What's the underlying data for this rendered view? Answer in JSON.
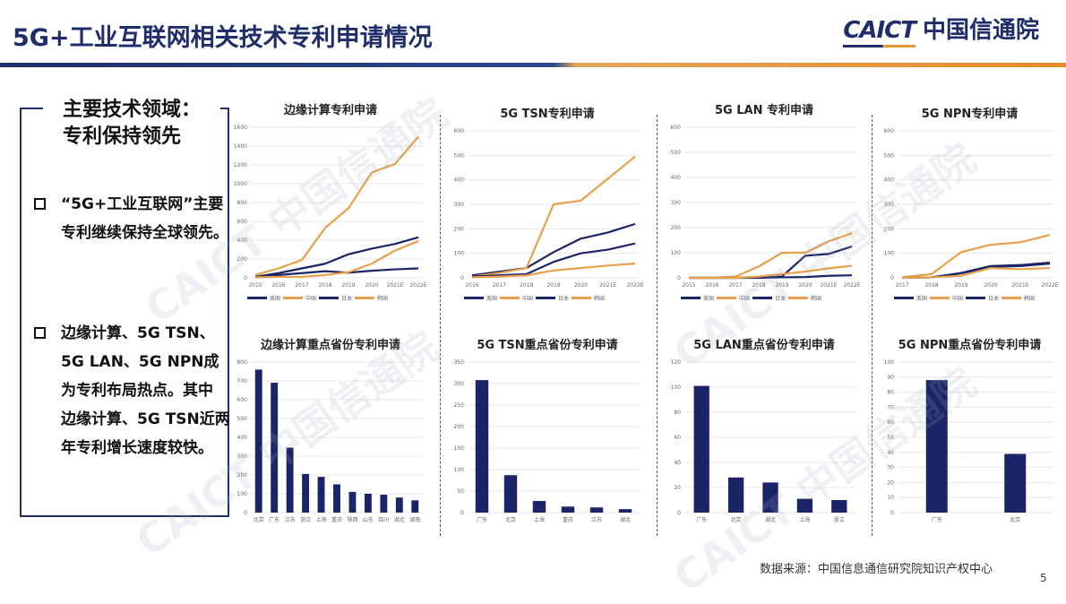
{
  "header": {
    "title": "5G+工业互联网相关技术专利申请情况",
    "logo_en": "CAICT",
    "logo_cn": "中国信通院"
  },
  "panel": {
    "title_line1": "主要技术领域：",
    "title_line2": "专利保持领先",
    "bullets": [
      {
        "text": "“5G+工业互联网”主要专利继续保持全球领先。"
      },
      {
        "text": "边缘计算、5G TSN、5G LAN、5G NPN成为专利布局热点。其中 边缘计算、5G TSN近两年专利增长速度较快。"
      }
    ]
  },
  "colors": {
    "navy": "#1a2466",
    "orange": "#e8a04a"
  },
  "legend": [
    {
      "label": "美国",
      "color": "#1a2466"
    },
    {
      "label": "中国",
      "color": "#e8a04a"
    },
    {
      "label": "日本",
      "color": "#1a2466"
    },
    {
      "label": "韩国",
      "color": "#e8a04a"
    }
  ],
  "footer": {
    "source": "数据来源：中国信息通信研究院知识产权中心",
    "page": "5"
  },
  "watermark": "CAICT 中国信通院",
  "chart_data": [
    {
      "type": "line",
      "title": "边缘计算专利申请",
      "categories": [
        "2015",
        "2016",
        "2017",
        "2018",
        "2019",
        "2020",
        "2021E",
        "2022E"
      ],
      "ylim": [
        0,
        1600
      ],
      "yticks": [
        0,
        200,
        400,
        600,
        800,
        1000,
        1200,
        1400,
        1600
      ],
      "series": [
        {
          "name": "美国",
          "values": [
            10,
            50,
            100,
            150,
            250,
            310,
            360,
            430
          ]
        },
        {
          "name": "中国",
          "values": [
            30,
            100,
            190,
            530,
            740,
            1120,
            1210,
            1500
          ]
        },
        {
          "name": "日本",
          "values": [
            5,
            30,
            50,
            70,
            55,
            75,
            90,
            100
          ]
        },
        {
          "name": "韩国",
          "values": [
            5,
            10,
            10,
            30,
            60,
            150,
            290,
            390
          ]
        }
      ],
      "legend_position": "bottom"
    },
    {
      "type": "line",
      "title": "5G TSN专利申请",
      "categories": [
        "2016",
        "2017",
        "2018",
        "2019",
        "2020",
        "2021E",
        "2022E"
      ],
      "ylim": [
        0,
        600
      ],
      "yticks": [
        0,
        100,
        200,
        300,
        400,
        500,
        600
      ],
      "series": [
        {
          "name": "美国",
          "values": [
            10,
            25,
            40,
            105,
            160,
            185,
            220
          ]
        },
        {
          "name": "中国",
          "values": [
            5,
            20,
            40,
            300,
            315,
            405,
            495
          ]
        },
        {
          "name": "日本",
          "values": [
            5,
            10,
            15,
            65,
            100,
            115,
            140
          ]
        },
        {
          "name": "韩国",
          "values": [
            2,
            5,
            10,
            30,
            40,
            50,
            58
          ]
        }
      ],
      "legend_position": "bottom"
    },
    {
      "type": "line",
      "title": "5G LAN 专利申请",
      "categories": [
        "2015",
        "2016",
        "2017",
        "2018",
        "2019",
        "2020",
        "2021E",
        "2022E"
      ],
      "ylim": [
        0,
        600
      ],
      "yticks": [
        0,
        100,
        200,
        300,
        400,
        500,
        600
      ],
      "series": [
        {
          "name": "美国",
          "values": [
            0,
            0,
            0,
            2,
            5,
            88,
            95,
            125
          ]
        },
        {
          "name": "中国",
          "values": [
            0,
            0,
            5,
            45,
            100,
            100,
            145,
            178
          ]
        },
        {
          "name": "日本",
          "values": [
            0,
            0,
            0,
            0,
            2,
            3,
            8,
            10
          ]
        },
        {
          "name": "韩国",
          "values": [
            0,
            0,
            0,
            5,
            15,
            25,
            38,
            48
          ]
        }
      ],
      "legend_position": "bottom"
    },
    {
      "type": "line",
      "title": "5G NPN专利申请",
      "categories": [
        "2017",
        "2018",
        "2019",
        "2020",
        "2021E",
        "2022E"
      ],
      "ylim": [
        0,
        600
      ],
      "yticks": [
        0,
        100,
        200,
        300,
        400,
        500,
        600
      ],
      "series": [
        {
          "name": "美国",
          "values": [
            0,
            2,
            20,
            48,
            52,
            62
          ]
        },
        {
          "name": "中国",
          "values": [
            2,
            15,
            105,
            135,
            145,
            175
          ]
        },
        {
          "name": "日本",
          "values": [
            0,
            2,
            18,
            45,
            48,
            58
          ]
        },
        {
          "name": "韩国",
          "values": [
            0,
            2,
            8,
            40,
            35,
            40
          ]
        }
      ],
      "legend_position": "bottom"
    },
    {
      "type": "bar",
      "title": "边缘计算重点省份专利申请",
      "categories": [
        "北京",
        "广东",
        "江苏",
        "浙江",
        "上海",
        "重庆",
        "陕西",
        "山东",
        "四川",
        "湖北",
        "湖南"
      ],
      "values": [
        760,
        690,
        345,
        205,
        190,
        150,
        110,
        100,
        95,
        80,
        65
      ],
      "ylim": [
        0,
        800
      ],
      "yticks": [
        0,
        100,
        200,
        300,
        400,
        500,
        600,
        700,
        800
      ]
    },
    {
      "type": "bar",
      "title": "5G TSN重点省份专利申请",
      "categories": [
        "广东",
        "北京",
        "上海",
        "重庆",
        "江苏",
        "湖北"
      ],
      "values": [
        308,
        87,
        27,
        14,
        12,
        8
      ],
      "ylim": [
        0,
        350
      ],
      "yticks": [
        0,
        50,
        100,
        150,
        200,
        250,
        300,
        350
      ]
    },
    {
      "type": "bar",
      "title": "5G LAN重点省份专利申请",
      "categories": [
        "广东",
        "北京",
        "湖北",
        "上海",
        "浙江"
      ],
      "values": [
        101,
        28,
        24,
        11,
        10
      ],
      "ylim": [
        0,
        120
      ],
      "yticks": [
        0,
        20,
        40,
        60,
        80,
        100,
        120
      ]
    },
    {
      "type": "bar",
      "title": "5G NPN重点省份专利申请",
      "categories": [
        "广东",
        "北京"
      ],
      "values": [
        88,
        39
      ],
      "ylim": [
        0,
        100
      ],
      "yticks": [
        0,
        10,
        20,
        30,
        40,
        50,
        60,
        70,
        80,
        90,
        100
      ]
    }
  ]
}
